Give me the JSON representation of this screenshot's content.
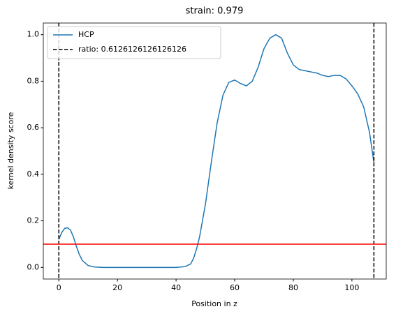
{
  "chart_data": {
    "type": "line",
    "title": "strain: 0.979",
    "xlabel": "Position in z",
    "ylabel": "kernel density score",
    "x": [
      0,
      1,
      2,
      3,
      4,
      5,
      6,
      7,
      8,
      10,
      12,
      15,
      20,
      30,
      40,
      43,
      45,
      46,
      47,
      48,
      50,
      52,
      54,
      56,
      58,
      60,
      62,
      64,
      66,
      68,
      70,
      72,
      74,
      76,
      78,
      80,
      82,
      84,
      86,
      88,
      90,
      92,
      94,
      96,
      98,
      100,
      102,
      104,
      106,
      107.5
    ],
    "series": [
      {
        "name": "HCP",
        "color": "#1f77b4",
        "values": [
          0.12,
          0.15,
          0.168,
          0.17,
          0.16,
          0.13,
          0.09,
          0.055,
          0.03,
          0.008,
          0.002,
          0,
          0,
          0,
          0,
          0.003,
          0.015,
          0.04,
          0.08,
          0.13,
          0.27,
          0.45,
          0.62,
          0.74,
          0.795,
          0.805,
          0.79,
          0.78,
          0.8,
          0.86,
          0.94,
          0.985,
          1.0,
          0.985,
          0.92,
          0.87,
          0.85,
          0.845,
          0.84,
          0.835,
          0.825,
          0.82,
          0.825,
          0.825,
          0.81,
          0.78,
          0.745,
          0.69,
          0.58,
          0.45
        ]
      }
    ],
    "vlines": {
      "name": "ratio: 0.6126126126126126",
      "color": "#000000",
      "values": [
        0,
        107.5
      ]
    },
    "hline": {
      "value": 0.1,
      "color": "#ff0000"
    },
    "xlim": [
      -5.3,
      111.7
    ],
    "ylim": [
      -0.05,
      1.05
    ],
    "xticks": [
      0,
      20,
      40,
      60,
      80,
      100
    ],
    "yticks": [
      {
        "value": 0,
        "label": "0.0"
      },
      0.2,
      0.4,
      0.6,
      0.8,
      {
        "value": 1,
        "label": "1.0"
      }
    ],
    "legend": "upper left"
  }
}
